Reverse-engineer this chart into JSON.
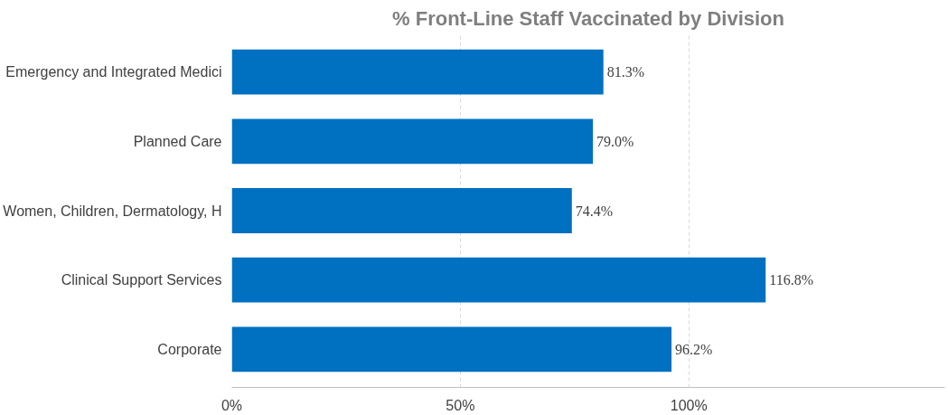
{
  "chart_data": {
    "type": "bar",
    "orientation": "horizontal",
    "title": "% Front-Line Staff Vaccinated by Division",
    "categories": [
      "Emergency and Integrated Medici",
      "Planned Care",
      "Women, Children, Dermatology, H",
      "Clinical Support Services",
      "Corporate"
    ],
    "values": [
      81.3,
      79.0,
      74.4,
      116.8,
      96.2
    ],
    "value_labels": [
      "81.3%",
      "79.0%",
      "74.4%",
      "116.8%",
      "96.2%"
    ],
    "color": "#0070c0",
    "xlim": [
      0,
      156
    ],
    "xticks": [
      {
        "value": 0,
        "label": "0%"
      },
      {
        "value": 50,
        "label": "50%"
      },
      {
        "value": 100,
        "label": "100%"
      }
    ],
    "grid": "x"
  }
}
